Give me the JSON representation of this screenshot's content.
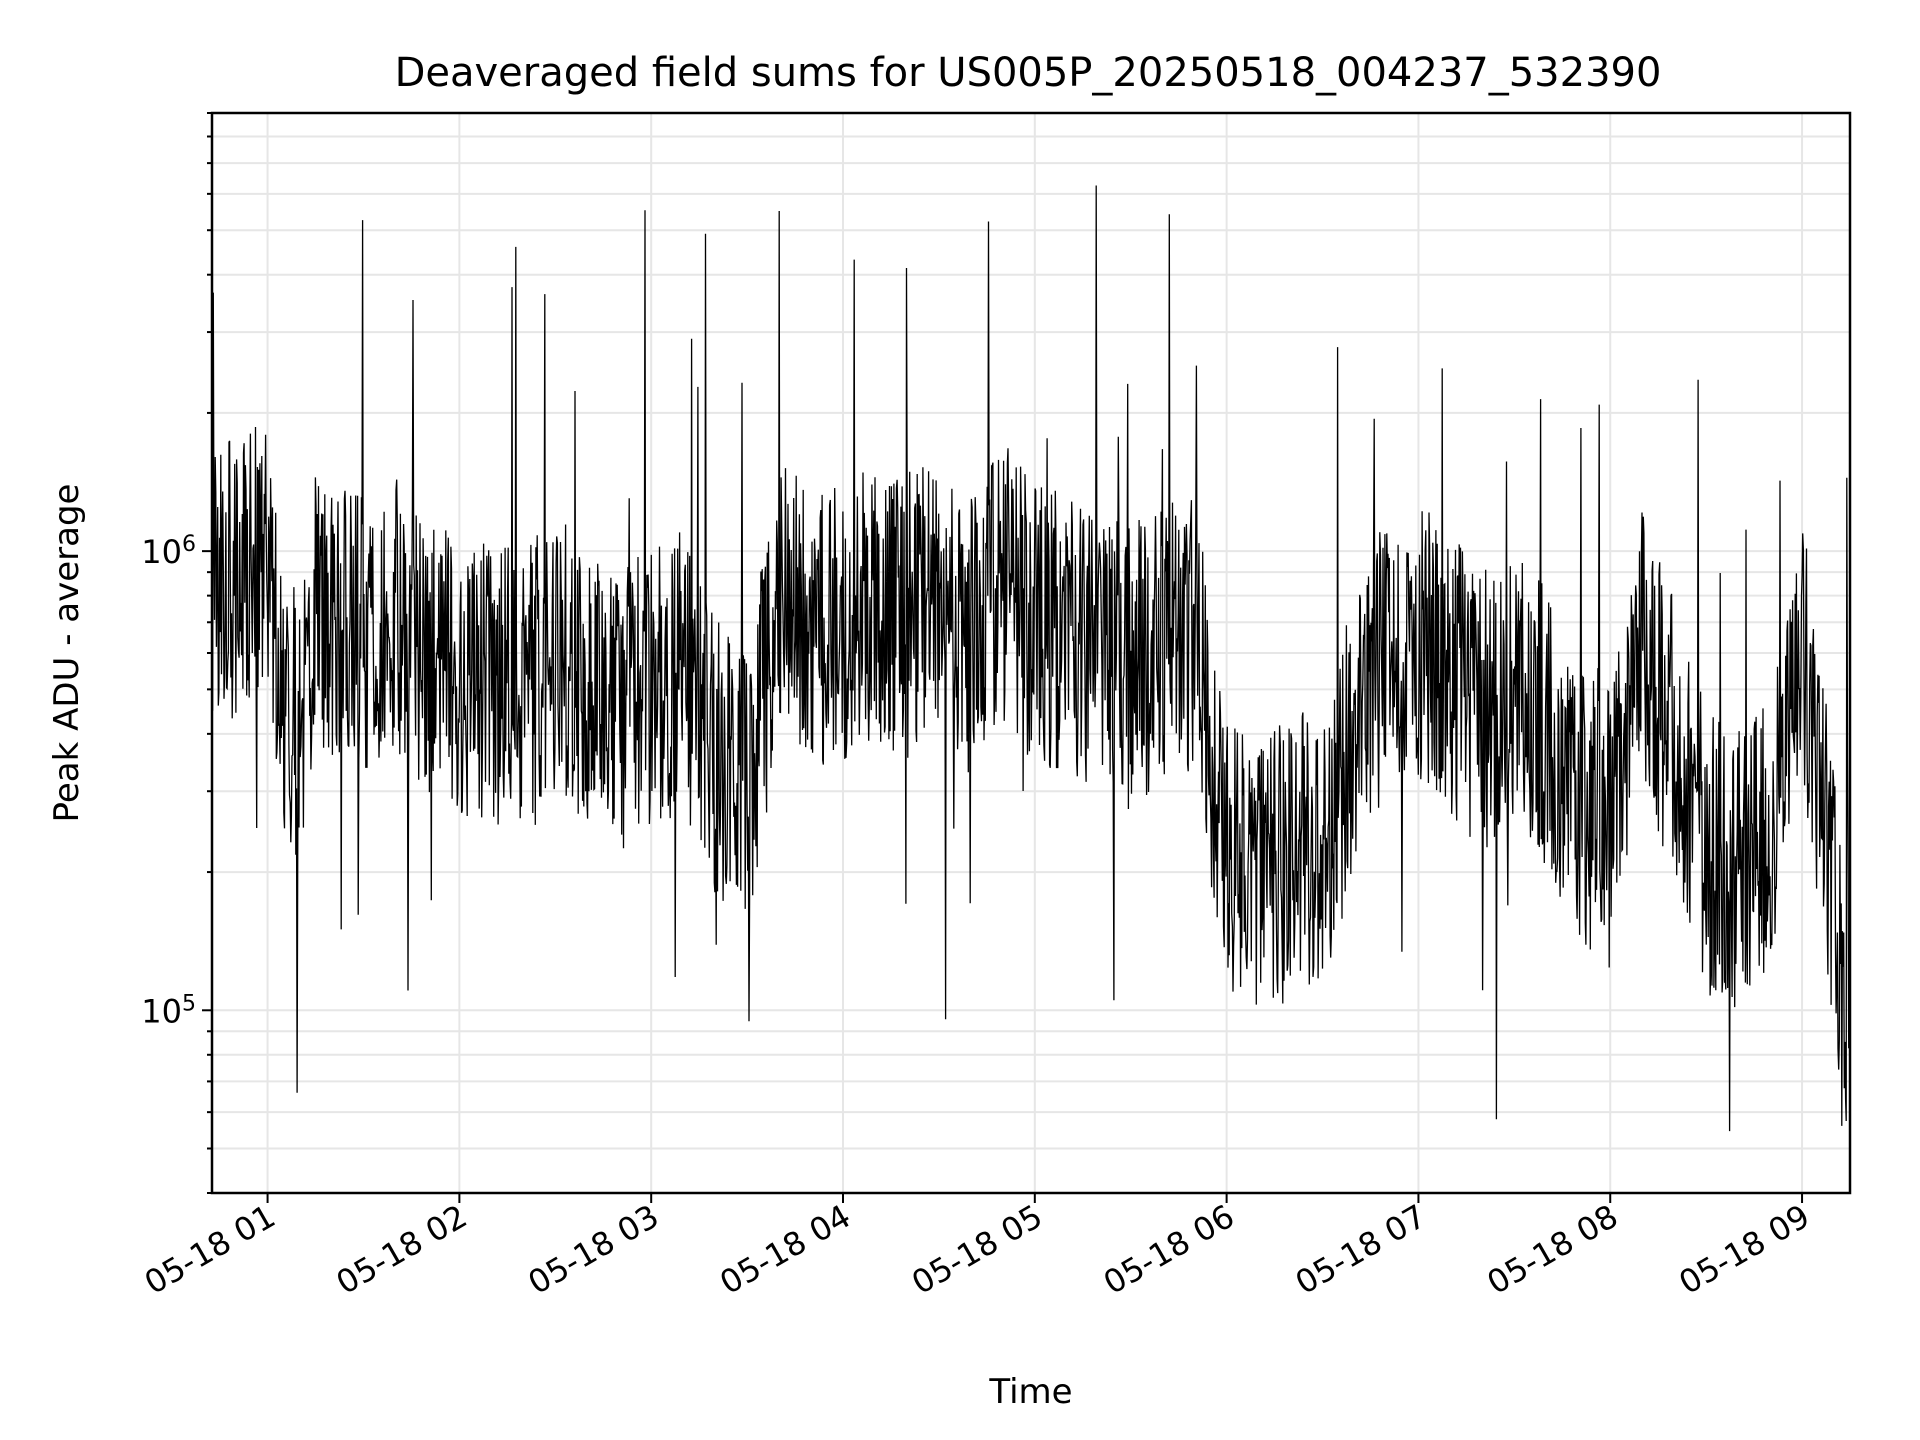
{
  "chart_data": {
    "type": "line",
    "title": "Deaveraged field sums for US005P_20250518_004237_532390",
    "xlabel": "Time",
    "ylabel": "Peak ADU - average",
    "yscale": "log",
    "xlim": [
      "2025-05-18T00:42:37",
      "2025-05-18T09:15:00"
    ],
    "ylim": [
      40000,
      9000000
    ],
    "x_ticks": [
      "05-18 01",
      "05-18 02",
      "05-18 03",
      "05-18 04",
      "05-18 05",
      "05-18 06",
      "05-18 07",
      "05-18 08",
      "05-18 09"
    ],
    "y_ticks": [
      {
        "base": "10",
        "exp": "5",
        "value": 100000
      },
      {
        "base": "10",
        "exp": "6",
        "value": 1000000
      }
    ],
    "grid": true,
    "series": [
      {
        "color": "#000000",
        "x": [
          "2025-05-18T00:43",
          "2025-05-18T00:50",
          "2025-05-18T00:58",
          "2025-05-18T01:00",
          "2025-05-18T01:05",
          "2025-05-18T01:10",
          "2025-05-18T01:15",
          "2025-05-18T01:20",
          "2025-05-18T01:30",
          "2025-05-18T01:40",
          "2025-05-18T01:50",
          "2025-05-18T02:00",
          "2025-05-18T02:10",
          "2025-05-18T02:20",
          "2025-05-18T02:30",
          "2025-05-18T02:40",
          "2025-05-18T02:50",
          "2025-05-18T03:00",
          "2025-05-18T03:10",
          "2025-05-18T03:20",
          "2025-05-18T03:30",
          "2025-05-18T03:40",
          "2025-05-18T03:50",
          "2025-05-18T04:00",
          "2025-05-18T04:10",
          "2025-05-18T04:20",
          "2025-05-18T04:30",
          "2025-05-18T04:40",
          "2025-05-18T04:50",
          "2025-05-18T05:00",
          "2025-05-18T05:10",
          "2025-05-18T05:20",
          "2025-05-18T05:30",
          "2025-05-18T05:40",
          "2025-05-18T05:50",
          "2025-05-18T06:00",
          "2025-05-18T06:10",
          "2025-05-18T06:20",
          "2025-05-18T06:30",
          "2025-05-18T06:40",
          "2025-05-18T06:50",
          "2025-05-18T07:00",
          "2025-05-18T07:10",
          "2025-05-18T07:20",
          "2025-05-18T07:30",
          "2025-05-18T07:40",
          "2025-05-18T07:50",
          "2025-05-18T08:00",
          "2025-05-18T08:10",
          "2025-05-18T08:20",
          "2025-05-18T08:30",
          "2025-05-18T08:40",
          "2025-05-18T08:50",
          "2025-05-18T09:00",
          "2025-05-18T09:05",
          "2025-05-18T09:10",
          "2025-05-18T09:14"
        ],
        "y": [
          900000,
          850000,
          1000000,
          950000,
          500000,
          400000,
          800000,
          700000,
          650000,
          750000,
          600000,
          550000,
          500000,
          500000,
          600000,
          500000,
          450000,
          500000,
          550000,
          350000,
          300000,
          800000,
          700000,
          700000,
          750000,
          750000,
          800000,
          650000,
          850000,
          700000,
          650000,
          600000,
          550000,
          650000,
          650000,
          230000,
          180000,
          220000,
          230000,
          400000,
          600000,
          650000,
          550000,
          450000,
          500000,
          420000,
          280000,
          270000,
          600000,
          400000,
          220000,
          200000,
          230000,
          650000,
          300000,
          180000,
          110000
        ]
      }
    ]
  }
}
